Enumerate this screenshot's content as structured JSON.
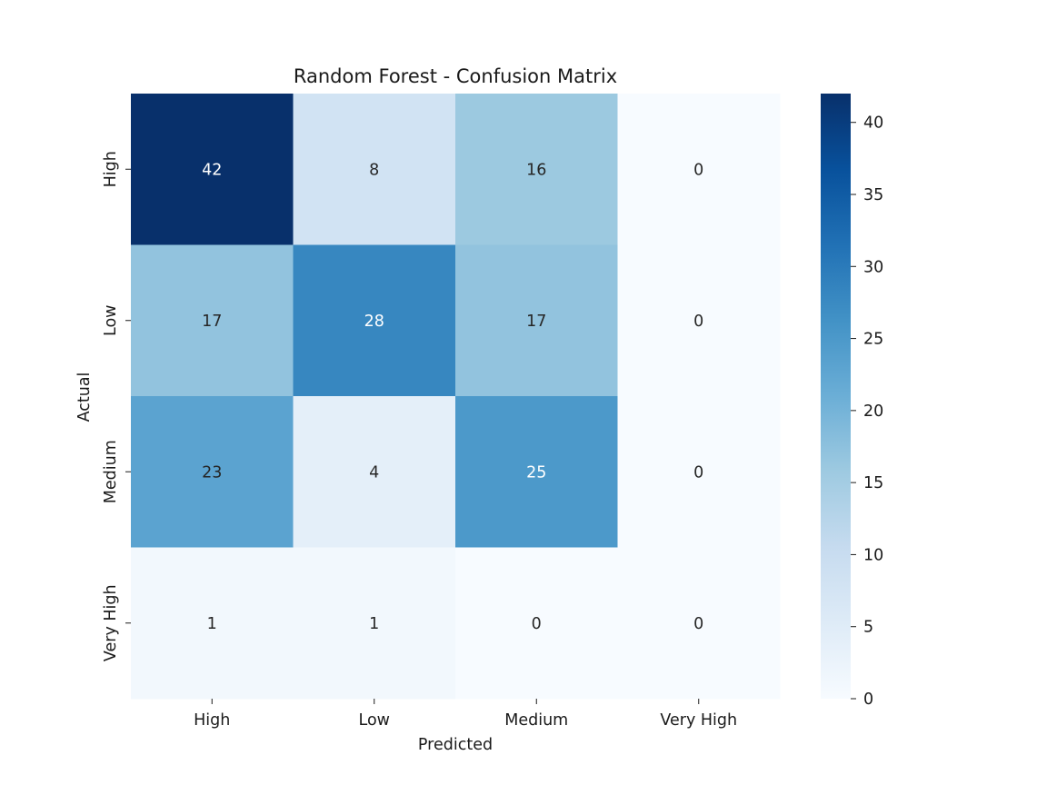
{
  "chart_data": {
    "type": "heatmap",
    "title": "Random Forest - Confusion Matrix",
    "xlabel": "Predicted",
    "ylabel": "Actual",
    "x_categories": [
      "High",
      "Low",
      "Medium",
      "Very High"
    ],
    "y_categories": [
      "High",
      "Low",
      "Medium",
      "Very High"
    ],
    "values": [
      [
        42,
        8,
        16,
        0
      ],
      [
        17,
        28,
        17,
        0
      ],
      [
        23,
        4,
        25,
        0
      ],
      [
        1,
        1,
        0,
        0
      ]
    ],
    "colormap": "Blues",
    "color_range": [
      0,
      42
    ],
    "colorbar_ticks": [
      0,
      5,
      10,
      15,
      20,
      25,
      30,
      35,
      40
    ],
    "grid": false
  }
}
